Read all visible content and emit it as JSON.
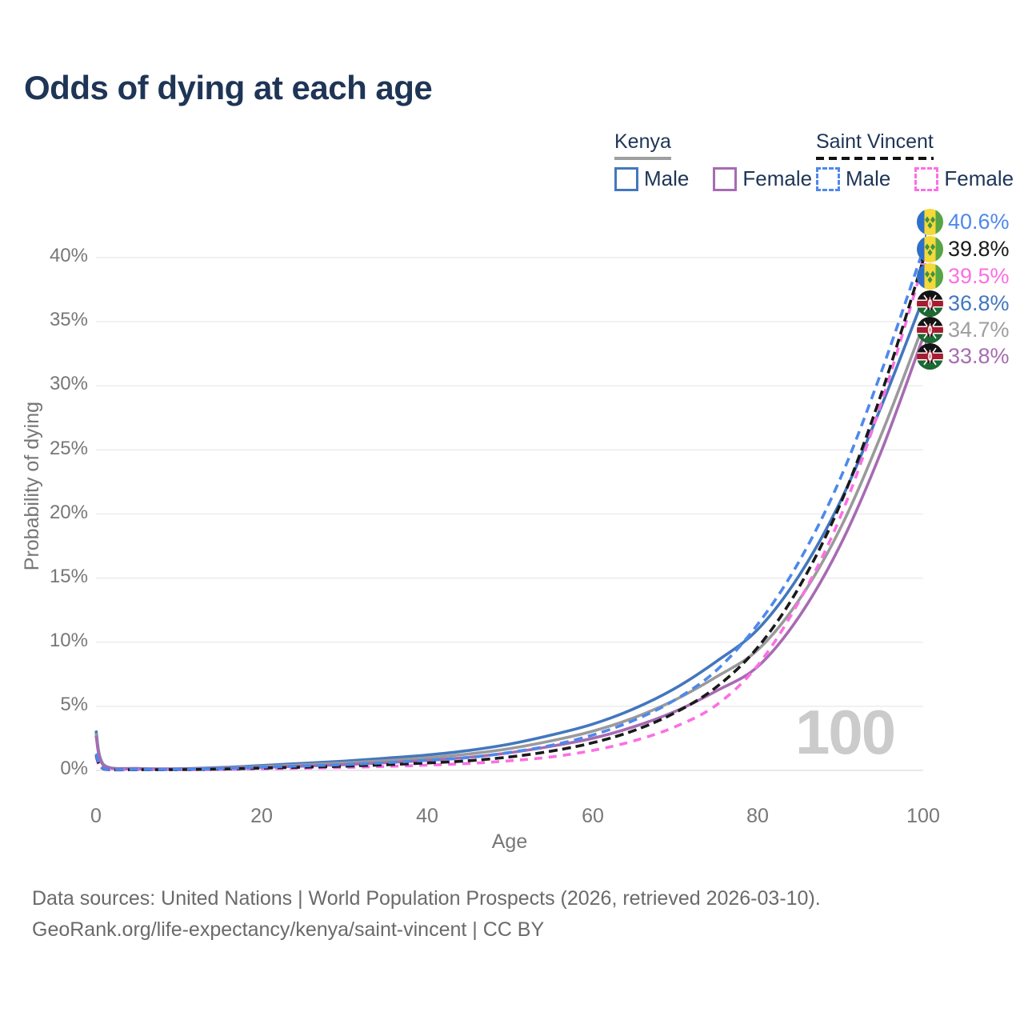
{
  "title": "Odds of dying at each age",
  "legend": {
    "groups": [
      {
        "name": "Kenya",
        "style": "solid",
        "items": [
          {
            "label": "Male",
            "color": "#4377bd"
          },
          {
            "label": "Female",
            "color": "#a76bb2"
          }
        ]
      },
      {
        "name": "Saint Vincent",
        "style": "dashed",
        "items": [
          {
            "label": "Male",
            "color": "#4e88ec"
          },
          {
            "label": "Female",
            "color": "#fb6fe4"
          }
        ]
      }
    ]
  },
  "end_labels": [
    {
      "flag": "saint-vincent",
      "value": "40.6%",
      "color": "#4e88ec"
    },
    {
      "flag": "saint-vincent",
      "value": "39.8%",
      "color": "#1a1a1a"
    },
    {
      "flag": "saint-vincent",
      "value": "39.5%",
      "color": "#fb6fe4"
    },
    {
      "flag": "kenya",
      "value": "36.8%",
      "color": "#4377bd"
    },
    {
      "flag": "kenya",
      "value": "34.7%",
      "color": "#9e9e9e"
    },
    {
      "flag": "kenya",
      "value": "33.8%",
      "color": "#a76bb2"
    }
  ],
  "watermark": "100",
  "footer": {
    "line1": "Data sources: United Nations | World Population Prospects (2026, retrieved 2026-03-10).",
    "line2": "GeoRank.org/life-expectancy/kenya/saint-vincent | CC BY"
  },
  "colors": {
    "title": "#1e3556",
    "axis_text": "#777777",
    "grid": "#ececec",
    "watermark": "#cbcbcb"
  },
  "chart_data": {
    "type": "line",
    "title": "Odds of dying at each age",
    "xlabel": "Age",
    "ylabel": "Probability of dying",
    "xlim": [
      0,
      100
    ],
    "ylim": [
      0,
      42
    ],
    "grid": true,
    "legend_position": "top-right",
    "xticks": [
      {
        "label": "0",
        "value": 0
      },
      {
        "label": "20",
        "value": 20
      },
      {
        "label": "40",
        "value": 40
      },
      {
        "label": "60",
        "value": 60
      },
      {
        "label": "80",
        "value": 80
      },
      {
        "label": "100",
        "value": 100
      }
    ],
    "yticks": [
      {
        "label": "0%",
        "value": 0
      },
      {
        "label": "5%",
        "value": 5
      },
      {
        "label": "10%",
        "value": 10
      },
      {
        "label": "15%",
        "value": 15
      },
      {
        "label": "20%",
        "value": 20
      },
      {
        "label": "25%",
        "value": 25
      },
      {
        "label": "30%",
        "value": 30
      },
      {
        "label": "35%",
        "value": 35
      },
      {
        "label": "40%",
        "value": 40
      }
    ],
    "x": [
      0,
      1,
      5,
      10,
      15,
      20,
      25,
      30,
      35,
      40,
      45,
      50,
      55,
      60,
      65,
      70,
      75,
      80,
      85,
      90,
      95,
      100
    ],
    "series": [
      {
        "name": "Saint Vincent Male",
        "country": "Saint Vincent",
        "sex": "Male",
        "dash": "11 7",
        "color": "#4e88ec",
        "end_label": "40.6%",
        "values": [
          1.3,
          0.12,
          0.08,
          0.08,
          0.14,
          0.25,
          0.35,
          0.45,
          0.6,
          0.78,
          1.0,
          1.4,
          1.95,
          2.75,
          3.9,
          5.5,
          7.8,
          11.4,
          16.3,
          22.8,
          31.2,
          40.6
        ]
      },
      {
        "name": "Saint Vincent",
        "country": "Saint Vincent",
        "sex": "Both",
        "dash": "11 6",
        "color": "#1a1a1a",
        "end_label": "39.8%",
        "values": [
          1.2,
          0.1,
          0.06,
          0.06,
          0.1,
          0.18,
          0.25,
          0.33,
          0.44,
          0.58,
          0.75,
          1.05,
          1.5,
          2.15,
          3.1,
          4.5,
          6.5,
          9.6,
          14.3,
          20.8,
          29.5,
          39.8
        ]
      },
      {
        "name": "Saint Vincent Female",
        "country": "Saint Vincent",
        "sex": "Female",
        "dash": "10 8",
        "color": "#fb6fe4",
        "end_label": "39.5%",
        "values": [
          1.1,
          0.09,
          0.05,
          0.05,
          0.07,
          0.12,
          0.17,
          0.23,
          0.31,
          0.41,
          0.54,
          0.75,
          1.05,
          1.55,
          2.3,
          3.4,
          5.1,
          8.2,
          13.2,
          19.8,
          28.8,
          39.5
        ]
      },
      {
        "name": "Kenya Male",
        "country": "Kenya",
        "sex": "Male",
        "dash": null,
        "color": "#4377bd",
        "end_label": "36.8%",
        "values": [
          3.1,
          0.4,
          0.15,
          0.13,
          0.22,
          0.38,
          0.55,
          0.72,
          0.95,
          1.2,
          1.55,
          2.05,
          2.75,
          3.6,
          4.8,
          6.4,
          8.5,
          11.0,
          15.2,
          21.0,
          28.5,
          36.8
        ]
      },
      {
        "name": "Kenya",
        "country": "Kenya",
        "sex": "Both",
        "dash": null,
        "color": "#9a9a9a",
        "end_label": "34.7%",
        "values": [
          2.9,
          0.37,
          0.13,
          0.11,
          0.18,
          0.3,
          0.44,
          0.58,
          0.76,
          0.98,
          1.28,
          1.7,
          2.3,
          3.05,
          4.1,
          5.5,
          7.3,
          9.4,
          13.3,
          18.9,
          26.3,
          34.7
        ]
      },
      {
        "name": "Kenya Female",
        "country": "Kenya",
        "sex": "Female",
        "dash": null,
        "color": "#a76bb2",
        "end_label": "33.8%",
        "values": [
          2.7,
          0.34,
          0.12,
          0.1,
          0.15,
          0.23,
          0.33,
          0.45,
          0.6,
          0.78,
          1.02,
          1.38,
          1.88,
          2.5,
          3.4,
          4.6,
          6.2,
          8.1,
          12.0,
          17.6,
          25.0,
          33.8
        ]
      }
    ]
  }
}
